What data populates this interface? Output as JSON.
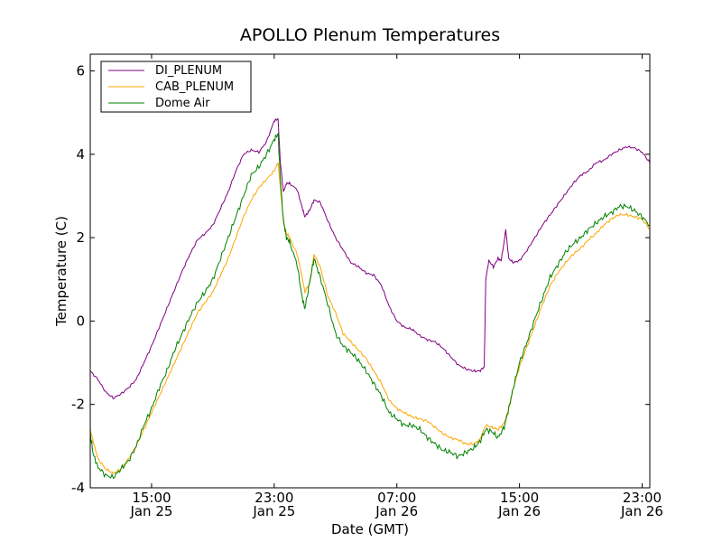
{
  "chart_data": {
    "type": "line",
    "title": "APOLLO Plenum Temperatures",
    "xlabel": "Date (GMT)",
    "ylabel": "Temperature (C)",
    "xlim": [
      11,
      47.5
    ],
    "ylim": [
      -4,
      6.4
    ],
    "yticks": [
      -4,
      -2,
      0,
      2,
      4,
      6
    ],
    "xticks": [
      {
        "x": 15,
        "time": "15:00",
        "date": "Jan 25"
      },
      {
        "x": 23,
        "time": "23:00",
        "date": "Jan 25"
      },
      {
        "x": 31,
        "time": "07:00",
        "date": "Jan 26"
      },
      {
        "x": 39,
        "time": "15:00",
        "date": "Jan 26"
      },
      {
        "x": 47,
        "time": "23:00",
        "date": "Jan 26"
      }
    ],
    "grid": false,
    "legend": "top-left",
    "x_units": "hours since Jan 25 00:00 GMT",
    "series": [
      {
        "name": "DI_PLENUM",
        "color": "#800080",
        "points": [
          [
            11.0,
            -1.2
          ],
          [
            11.5,
            -1.4
          ],
          [
            12.0,
            -1.7
          ],
          [
            12.5,
            -1.85
          ],
          [
            13.0,
            -1.75
          ],
          [
            13.5,
            -1.6
          ],
          [
            14.0,
            -1.4
          ],
          [
            14.5,
            -1.0
          ],
          [
            15.0,
            -0.6
          ],
          [
            15.5,
            -0.15
          ],
          [
            16.0,
            0.3
          ],
          [
            16.5,
            0.75
          ],
          [
            17.0,
            1.2
          ],
          [
            17.5,
            1.6
          ],
          [
            18.0,
            1.95
          ],
          [
            18.5,
            2.1
          ],
          [
            19.0,
            2.3
          ],
          [
            19.5,
            2.7
          ],
          [
            20.0,
            3.1
          ],
          [
            20.5,
            3.6
          ],
          [
            21.0,
            4.0
          ],
          [
            21.5,
            4.1
          ],
          [
            22.0,
            4.05
          ],
          [
            22.5,
            4.3
          ],
          [
            23.0,
            4.8
          ],
          [
            23.25,
            4.85
          ],
          [
            23.4,
            3.8
          ],
          [
            23.6,
            3.1
          ],
          [
            23.8,
            3.3
          ],
          [
            24.0,
            3.3
          ],
          [
            24.5,
            3.15
          ],
          [
            24.8,
            2.75
          ],
          [
            25.0,
            2.5
          ],
          [
            25.3,
            2.65
          ],
          [
            25.6,
            2.9
          ],
          [
            26.0,
            2.85
          ],
          [
            26.5,
            2.4
          ],
          [
            27.0,
            2.0
          ],
          [
            27.5,
            1.7
          ],
          [
            28.0,
            1.4
          ],
          [
            28.5,
            1.3
          ],
          [
            29.0,
            1.15
          ],
          [
            29.5,
            1.1
          ],
          [
            30.0,
            0.85
          ],
          [
            30.5,
            0.35
          ],
          [
            31.0,
            0.0
          ],
          [
            31.5,
            -0.15
          ],
          [
            32.0,
            -0.2
          ],
          [
            32.5,
            -0.35
          ],
          [
            33.0,
            -0.45
          ],
          [
            33.5,
            -0.5
          ],
          [
            34.0,
            -0.65
          ],
          [
            34.5,
            -0.85
          ],
          [
            35.0,
            -1.05
          ],
          [
            35.5,
            -1.15
          ],
          [
            36.0,
            -1.2
          ],
          [
            36.4,
            -1.2
          ],
          [
            36.7,
            -1.1
          ],
          [
            36.8,
            1.0
          ],
          [
            37.0,
            1.45
          ],
          [
            37.3,
            1.3
          ],
          [
            37.6,
            1.5
          ],
          [
            37.8,
            1.45
          ],
          [
            38.0,
            1.9
          ],
          [
            38.1,
            2.2
          ],
          [
            38.3,
            1.5
          ],
          [
            38.6,
            1.4
          ],
          [
            39.0,
            1.45
          ],
          [
            39.5,
            1.7
          ],
          [
            40.0,
            2.0
          ],
          [
            40.5,
            2.3
          ],
          [
            41.0,
            2.55
          ],
          [
            41.5,
            2.8
          ],
          [
            42.0,
            3.05
          ],
          [
            42.5,
            3.3
          ],
          [
            43.0,
            3.5
          ],
          [
            43.5,
            3.6
          ],
          [
            44.0,
            3.8
          ],
          [
            44.5,
            3.85
          ],
          [
            45.0,
            4.0
          ],
          [
            45.5,
            4.1
          ],
          [
            46.0,
            4.18
          ],
          [
            46.5,
            4.15
          ],
          [
            47.0,
            4.05
          ],
          [
            47.5,
            3.8
          ]
        ]
      },
      {
        "name": "CAB_PLENUM",
        "color": "#ffa500",
        "points": [
          [
            11.0,
            -2.6
          ],
          [
            11.2,
            -2.9
          ],
          [
            11.5,
            -3.3
          ],
          [
            12.0,
            -3.55
          ],
          [
            12.5,
            -3.65
          ],
          [
            13.0,
            -3.55
          ],
          [
            13.5,
            -3.3
          ],
          [
            14.0,
            -3.0
          ],
          [
            14.5,
            -2.6
          ],
          [
            15.0,
            -2.2
          ],
          [
            15.5,
            -1.8
          ],
          [
            16.0,
            -1.4
          ],
          [
            16.5,
            -1.0
          ],
          [
            17.0,
            -0.6
          ],
          [
            17.5,
            -0.2
          ],
          [
            18.0,
            0.2
          ],
          [
            18.5,
            0.45
          ],
          [
            19.0,
            0.7
          ],
          [
            19.5,
            1.1
          ],
          [
            20.0,
            1.5
          ],
          [
            20.5,
            2.0
          ],
          [
            21.0,
            2.5
          ],
          [
            21.5,
            2.9
          ],
          [
            22.0,
            3.2
          ],
          [
            22.5,
            3.4
          ],
          [
            23.0,
            3.6
          ],
          [
            23.25,
            3.8
          ],
          [
            23.4,
            3.2
          ],
          [
            23.6,
            2.4
          ],
          [
            23.8,
            2.1
          ],
          [
            24.0,
            2.0
          ],
          [
            24.5,
            1.6
          ],
          [
            24.8,
            1.1
          ],
          [
            25.0,
            0.7
          ],
          [
            25.3,
            0.9
          ],
          [
            25.6,
            1.6
          ],
          [
            26.0,
            1.3
          ],
          [
            26.5,
            0.6
          ],
          [
            27.0,
            0.2
          ],
          [
            27.5,
            -0.3
          ],
          [
            28.0,
            -0.5
          ],
          [
            28.5,
            -0.7
          ],
          [
            29.0,
            -0.9
          ],
          [
            29.5,
            -1.2
          ],
          [
            30.0,
            -1.5
          ],
          [
            30.5,
            -1.9
          ],
          [
            31.0,
            -2.1
          ],
          [
            31.5,
            -2.2
          ],
          [
            32.0,
            -2.3
          ],
          [
            32.5,
            -2.35
          ],
          [
            33.0,
            -2.4
          ],
          [
            33.5,
            -2.55
          ],
          [
            34.0,
            -2.7
          ],
          [
            34.5,
            -2.8
          ],
          [
            35.0,
            -2.85
          ],
          [
            35.5,
            -2.95
          ],
          [
            36.0,
            -2.95
          ],
          [
            36.4,
            -2.85
          ],
          [
            36.8,
            -2.5
          ],
          [
            37.2,
            -2.55
          ],
          [
            37.6,
            -2.6
          ],
          [
            38.0,
            -2.45
          ],
          [
            38.3,
            -2.1
          ],
          [
            38.6,
            -1.6
          ],
          [
            39.0,
            -1.1
          ],
          [
            39.5,
            -0.6
          ],
          [
            40.0,
            -0.1
          ],
          [
            40.5,
            0.4
          ],
          [
            41.0,
            0.85
          ],
          [
            41.5,
            1.15
          ],
          [
            42.0,
            1.4
          ],
          [
            42.5,
            1.6
          ],
          [
            43.0,
            1.75
          ],
          [
            43.5,
            1.95
          ],
          [
            44.0,
            2.1
          ],
          [
            44.5,
            2.3
          ],
          [
            45.0,
            2.45
          ],
          [
            45.5,
            2.55
          ],
          [
            46.0,
            2.55
          ],
          [
            46.5,
            2.5
          ],
          [
            47.0,
            2.45
          ],
          [
            47.5,
            2.2
          ]
        ]
      },
      {
        "name": "Dome Air",
        "color": "#008000",
        "points": [
          [
            11.0,
            -2.7
          ],
          [
            11.2,
            -3.2
          ],
          [
            11.5,
            -3.5
          ],
          [
            12.0,
            -3.7
          ],
          [
            12.5,
            -3.75
          ],
          [
            13.0,
            -3.55
          ],
          [
            13.5,
            -3.35
          ],
          [
            14.0,
            -3.0
          ],
          [
            14.5,
            -2.5
          ],
          [
            15.0,
            -2.1
          ],
          [
            15.5,
            -1.6
          ],
          [
            16.0,
            -1.2
          ],
          [
            16.5,
            -0.7
          ],
          [
            17.0,
            -0.3
          ],
          [
            17.5,
            0.1
          ],
          [
            18.0,
            0.45
          ],
          [
            18.5,
            0.7
          ],
          [
            19.0,
            1.0
          ],
          [
            19.5,
            1.5
          ],
          [
            20.0,
            2.0
          ],
          [
            20.5,
            2.5
          ],
          [
            21.0,
            3.0
          ],
          [
            21.5,
            3.5
          ],
          [
            22.0,
            3.7
          ],
          [
            22.5,
            4.0
          ],
          [
            23.0,
            4.35
          ],
          [
            23.25,
            4.5
          ],
          [
            23.4,
            3.4
          ],
          [
            23.6,
            2.4
          ],
          [
            23.8,
            2.0
          ],
          [
            24.0,
            1.9
          ],
          [
            24.5,
            1.35
          ],
          [
            24.8,
            0.6
          ],
          [
            25.0,
            0.3
          ],
          [
            25.3,
            0.9
          ],
          [
            25.6,
            1.5
          ],
          [
            26.0,
            1.05
          ],
          [
            26.5,
            0.4
          ],
          [
            27.0,
            -0.3
          ],
          [
            27.5,
            -0.6
          ],
          [
            28.0,
            -0.75
          ],
          [
            28.5,
            -0.95
          ],
          [
            29.0,
            -1.2
          ],
          [
            29.5,
            -1.5
          ],
          [
            30.0,
            -1.8
          ],
          [
            30.5,
            -2.2
          ],
          [
            31.0,
            -2.35
          ],
          [
            31.5,
            -2.5
          ],
          [
            32.0,
            -2.5
          ],
          [
            32.5,
            -2.6
          ],
          [
            33.0,
            -2.8
          ],
          [
            33.5,
            -2.95
          ],
          [
            34.0,
            -3.1
          ],
          [
            34.5,
            -3.15
          ],
          [
            35.0,
            -3.25
          ],
          [
            35.5,
            -3.15
          ],
          [
            36.0,
            -3.05
          ],
          [
            36.4,
            -2.9
          ],
          [
            36.8,
            -2.6
          ],
          [
            37.2,
            -2.65
          ],
          [
            37.6,
            -2.8
          ],
          [
            38.0,
            -2.55
          ],
          [
            38.3,
            -2.1
          ],
          [
            38.6,
            -1.6
          ],
          [
            39.0,
            -1.0
          ],
          [
            39.5,
            -0.5
          ],
          [
            40.0,
            0.05
          ],
          [
            40.5,
            0.55
          ],
          [
            41.0,
            1.05
          ],
          [
            41.5,
            1.35
          ],
          [
            42.0,
            1.65
          ],
          [
            42.5,
            1.85
          ],
          [
            43.0,
            2.0
          ],
          [
            43.5,
            2.2
          ],
          [
            44.0,
            2.35
          ],
          [
            44.5,
            2.5
          ],
          [
            45.0,
            2.6
          ],
          [
            45.5,
            2.75
          ],
          [
            46.0,
            2.75
          ],
          [
            46.5,
            2.65
          ],
          [
            47.0,
            2.5
          ],
          [
            47.5,
            2.3
          ]
        ]
      }
    ]
  }
}
